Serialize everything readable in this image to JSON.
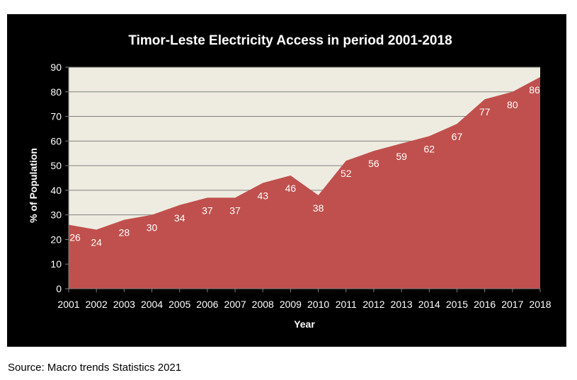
{
  "chart_data": {
    "type": "area",
    "title": "Timor-Leste Electricity  Access in period 2001-2018",
    "xlabel": "Year",
    "ylabel": "% of Population",
    "x": [
      "2001",
      "2002",
      "2003",
      "2004",
      "2005",
      "2006",
      "2007",
      "2008",
      "2009",
      "2010",
      "2011",
      "2012",
      "2013",
      "2014",
      "2015",
      "2016",
      "2017",
      "2018"
    ],
    "series": [
      {
        "values": [
          26,
          24,
          28,
          30,
          34,
          37,
          37,
          43,
          46,
          38,
          52,
          56,
          59,
          62,
          67,
          77,
          80,
          86
        ]
      }
    ],
    "data_labels": [
      "26",
      "24",
      "28",
      "30",
      "34",
      "37",
      "37",
      "43",
      "46",
      "38",
      "52",
      "56",
      "59",
      "62",
      "67",
      "77",
      "80",
      "86"
    ],
    "ylim": [
      0,
      90
    ],
    "yticks": [
      0,
      10,
      20,
      30,
      40,
      50,
      60,
      70,
      80,
      90
    ],
    "grid": true,
    "colors": {
      "area": "#c0504d",
      "plot_background": "#eeece1",
      "frame_background": "#000000",
      "text": "#ffffff",
      "grid": "#808080"
    }
  },
  "source_note": "Source: Macro trends Statistics 2021"
}
